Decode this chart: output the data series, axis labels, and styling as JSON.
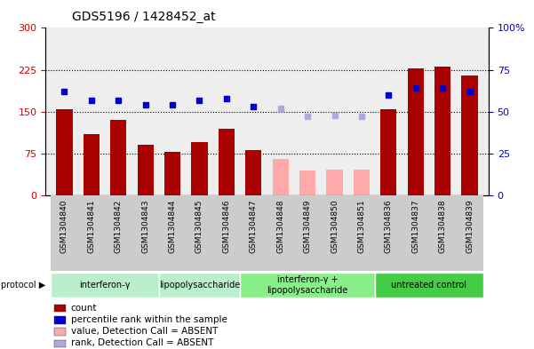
{
  "title": "GDS5196 / 1428452_at",
  "samples": [
    "GSM1304840",
    "GSM1304841",
    "GSM1304842",
    "GSM1304843",
    "GSM1304844",
    "GSM1304845",
    "GSM1304846",
    "GSM1304847",
    "GSM1304848",
    "GSM1304849",
    "GSM1304850",
    "GSM1304851",
    "GSM1304836",
    "GSM1304837",
    "GSM1304838",
    "GSM1304839"
  ],
  "counts": [
    155,
    110,
    135,
    90,
    78,
    95,
    120,
    82,
    65,
    45,
    47,
    46,
    155,
    228,
    230,
    215
  ],
  "counts_absent": [
    false,
    false,
    false,
    false,
    false,
    false,
    false,
    false,
    true,
    true,
    true,
    true,
    false,
    false,
    false,
    false
  ],
  "percentile_ranks": [
    62,
    57,
    57,
    54,
    54,
    57,
    58,
    53,
    null,
    null,
    null,
    null,
    60,
    64,
    64,
    62
  ],
  "percentile_absent_vals": [
    null,
    null,
    null,
    null,
    null,
    null,
    null,
    null,
    52,
    47,
    48,
    47,
    null,
    null,
    null,
    null
  ],
  "protocols": [
    {
      "label": "interferon-γ",
      "start": 0,
      "end": 3
    },
    {
      "label": "lipopolysaccharide",
      "start": 4,
      "end": 6
    },
    {
      "label": "interferon-γ +\nlipopolysaccharide",
      "start": 7,
      "end": 11
    },
    {
      "label": "untreated control",
      "start": 12,
      "end": 15
    }
  ],
  "proto_colors": [
    "#bbeecc",
    "#bbeecc",
    "#88ee88",
    "#44cc44"
  ],
  "ylim_left": [
    0,
    300
  ],
  "ylim_right": [
    0,
    100
  ],
  "yticks_left": [
    0,
    75,
    150,
    225,
    300
  ],
  "ytick_labels_left": [
    "0",
    "75",
    "150",
    "225",
    "300"
  ],
  "yticks_right": [
    0,
    25,
    50,
    75,
    100
  ],
  "ytick_labels_right": [
    "0",
    "25",
    "50",
    "75",
    "100%"
  ],
  "bar_color_present": "#aa0000",
  "bar_color_absent": "#ffaaaa",
  "dot_color_present": "#0000cc",
  "dot_color_absent": "#aaaadd",
  "background_plot": "#eeeeee",
  "legend_items": [
    {
      "label": "count",
      "color": "#aa0000"
    },
    {
      "label": "percentile rank within the sample",
      "color": "#0000cc"
    },
    {
      "label": "value, Detection Call = ABSENT",
      "color": "#ffaaaa"
    },
    {
      "label": "rank, Detection Call = ABSENT",
      "color": "#aaaadd"
    }
  ]
}
